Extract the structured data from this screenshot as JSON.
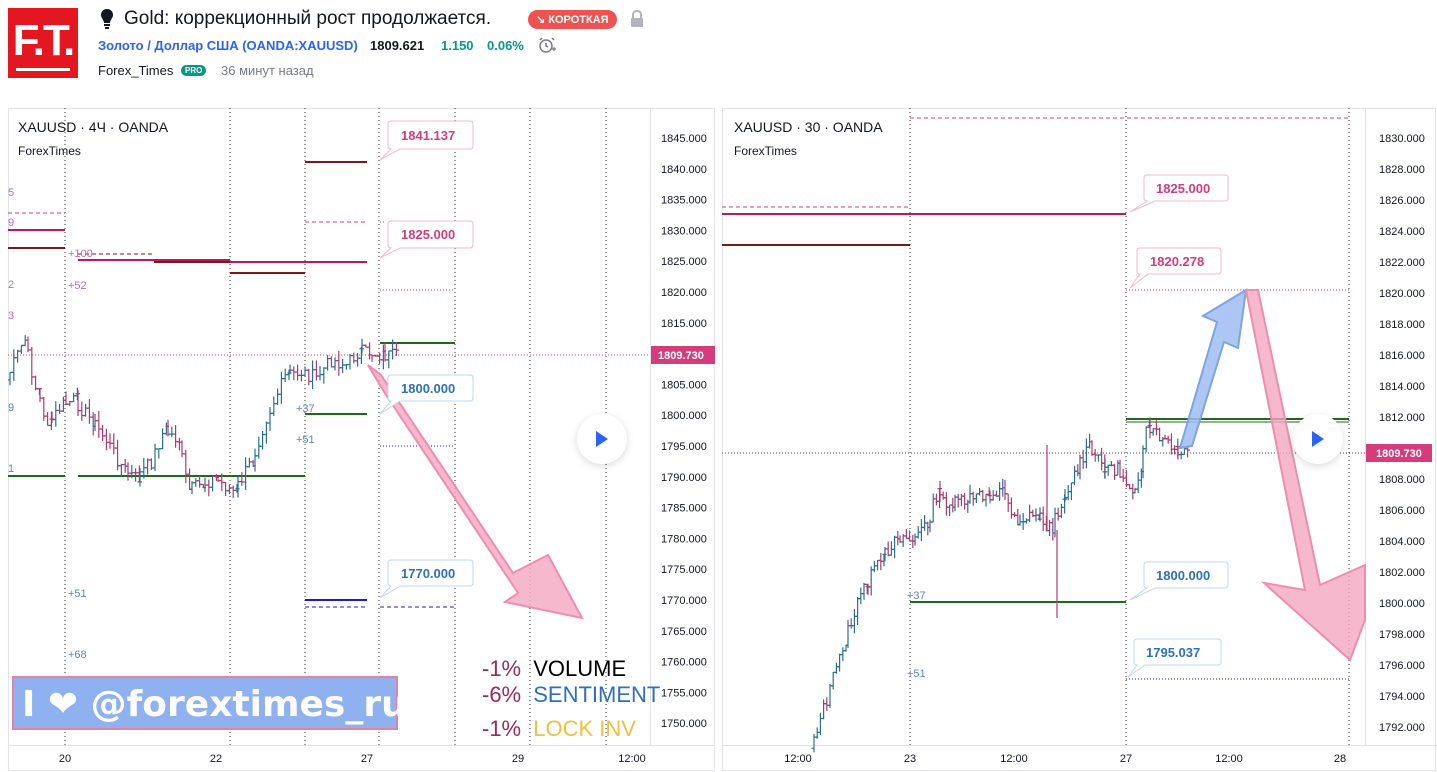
{
  "header": {
    "logo_text": "F.T.",
    "idea_title": "Gold: коррекционный рост продолжается.",
    "badge": "↘ КОРОТКАЯ",
    "symbol": "Золото / Доллар США (OANDA:XAUUSD)",
    "price": "1809.621",
    "change": "1.150",
    "change_pct": "0.06%",
    "author": "Forex_Times",
    "author_badge": "PRO",
    "time_ago": "36 минут назад"
  },
  "colors": {
    "up": "#2a6f97",
    "down": "#b5386f",
    "accent_pink": "#d63b7c",
    "green_line": "#1b6b1b",
    "maroon_line": "#7a1a1a",
    "blue_line": "#1c1ccc",
    "arrow_pink": "#f4a6bf",
    "arrow_blue": "#9ebdf2"
  },
  "left_chart": {
    "symbol_line": "XAUUSD · 4Ч · OANDA",
    "source": "ForexTimes",
    "price_axis": [
      "1845.000",
      "1840.000",
      "1835.000",
      "1830.000",
      "1825.000",
      "1820.000",
      "1815.000",
      "1810.000",
      "1805.000",
      "1800.000",
      "1795.000",
      "1790.000",
      "1785.000",
      "1780.000",
      "1775.000",
      "1770.000",
      "1765.000",
      "1760.000",
      "1755.000",
      "1750.000"
    ],
    "current_price": "1809.730",
    "time_axis": [
      "20",
      "22",
      "27",
      "29",
      "12:00"
    ],
    "callouts": {
      "c1841": "1841.137",
      "c1825": "1825.000",
      "c1800": "1800.000",
      "c1770": "1770.000"
    },
    "offsets": {
      "p100": "+100",
      "p52": "+52",
      "p37": "+37",
      "p51a": "+51",
      "p51b": "+51",
      "p68": "+68"
    },
    "edge_digits": {
      "d5": "5",
      "d9": "9",
      "d2": "2",
      "d3": "3",
      "d9b": "9",
      "d1": "1"
    }
  },
  "right_chart": {
    "symbol_line": "XAUUSD · 30 · OANDA",
    "source": "ForexTimes",
    "price_axis": [
      "1830.000",
      "1828.000",
      "1826.000",
      "1824.000",
      "1822.000",
      "1820.000",
      "1818.000",
      "1816.000",
      "1814.000",
      "1812.000",
      "1810.000",
      "1808.000",
      "1806.000",
      "1804.000",
      "1802.000",
      "1800.000",
      "1798.000",
      "1796.000",
      "1794.000",
      "1792.000"
    ],
    "current_price": "1809.730",
    "time_axis": [
      "12:00",
      "23",
      "12:00",
      "27",
      "12:00",
      "28"
    ],
    "callouts": {
      "c1825": "1825.000",
      "c1820": "1820.278",
      "c1800": "1800.000",
      "c1795": "1795.037"
    },
    "offsets": {
      "p37": "+37",
      "p51": "+51"
    }
  },
  "watermark": "I ❤ @forextimes_ru",
  "stats": [
    {
      "value": "-1%",
      "label": "VOLUME",
      "label_color": "#000000"
    },
    {
      "value": "-6%",
      "label": "SENTIMENT",
      "label_color": "#2f6fbf"
    },
    {
      "value": "-1%",
      "label": "LOCK INV",
      "label_color": "#f0c040"
    }
  ]
}
